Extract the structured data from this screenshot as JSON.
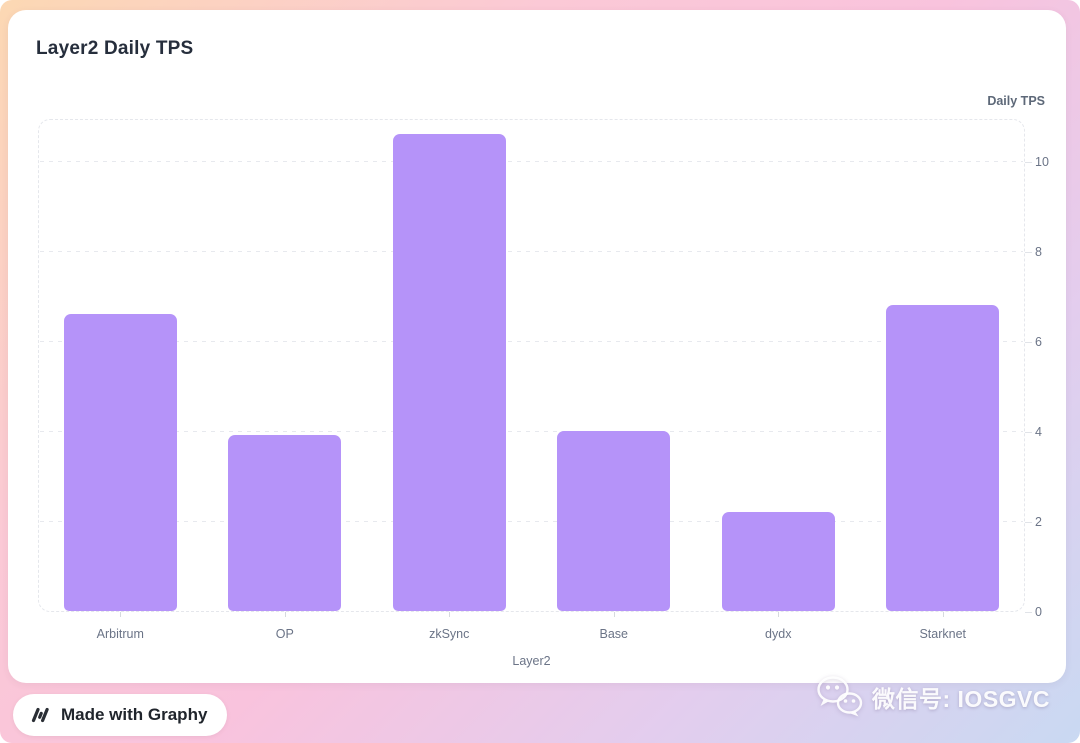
{
  "chart": {
    "title": "Layer2 Daily TPS",
    "y_axis_title": "Daily TPS",
    "x_axis_title": "Layer2"
  },
  "chart_data": {
    "type": "bar",
    "title": "Layer2 Daily TPS",
    "categories": [
      "Arbitrum",
      "OP",
      "zkSync",
      "Base",
      "dydx",
      "Starknet"
    ],
    "values": [
      6.6,
      3.9,
      10.6,
      4.0,
      2.2,
      6.8
    ],
    "xlabel": "Layer2",
    "ylabel": "Daily TPS",
    "ylim": [
      0,
      11
    ],
    "yticks": [
      0,
      2,
      4,
      6,
      8,
      10
    ],
    "legend_visible": false,
    "grid": "horizontal-dashed",
    "bar_color": "#b593f9"
  },
  "badge": {
    "label": "Made with Graphy"
  },
  "watermark": {
    "text": "微信号: IOSGVC"
  },
  "colors": {
    "bar": "#b593f9",
    "card_background": "#ffffff",
    "title_text": "#262e3c",
    "axis_text": "#6b7487",
    "gridline": "#e7e9ee",
    "gradient_top_left": "#fcd8b3",
    "gradient_pink": "#f9c3dd",
    "gradient_bottom_right": "#c9d9f2"
  },
  "icons": {
    "graphy_logo": "graphy-slashes-icon",
    "wechat": "wechat-icon"
  }
}
